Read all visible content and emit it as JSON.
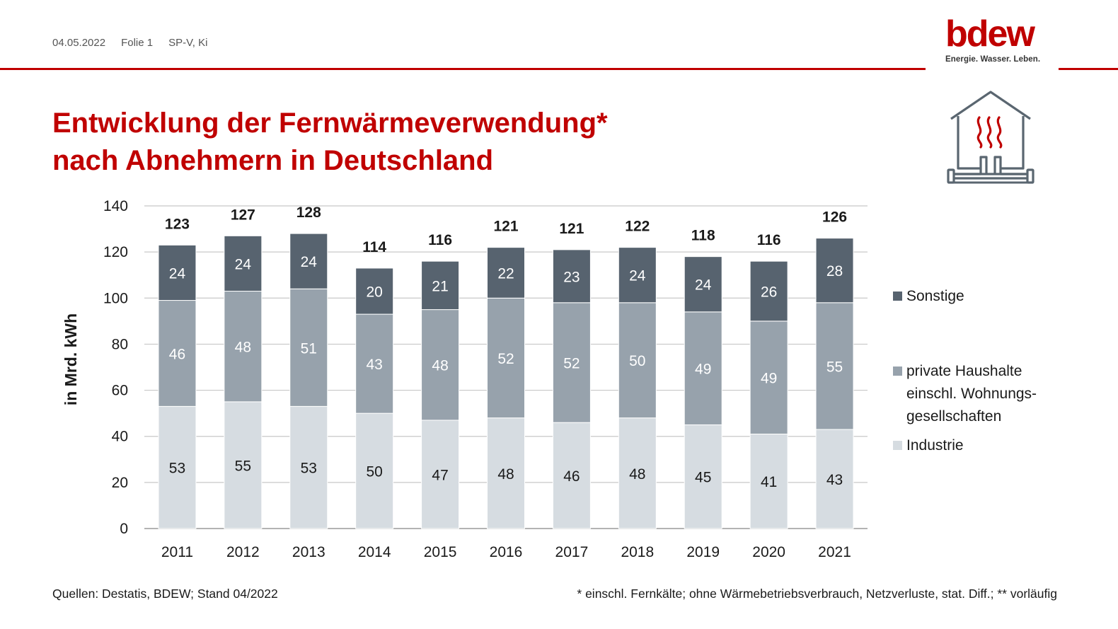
{
  "header": {
    "date": "04.05.2022",
    "slide": "Folie 1",
    "author": "SP-V, Ki"
  },
  "logo": {
    "word": "bdew",
    "tagline": "Energie. Wasser. Leben."
  },
  "title": {
    "line1": "Entwicklung der Fernwärmeverwendung*",
    "line2": "nach Abnehmern in Deutschland"
  },
  "icon": "house-heating-icon",
  "colors": {
    "accent": "#c00000",
    "sonstige": "#57636f",
    "haushalte": "#97a2ac",
    "industrie": "#d6dce1"
  },
  "chart_data": {
    "type": "bar",
    "stacked": true,
    "categories": [
      "2011",
      "2012",
      "2013",
      "2014",
      "2015",
      "2016",
      "2017",
      "2018",
      "2019",
      "2020",
      "2021"
    ],
    "series": [
      {
        "name": "Industrie",
        "values": [
          53,
          55,
          53,
          50,
          47,
          48,
          46,
          48,
          45,
          41,
          43
        ]
      },
      {
        "name": "private Haushalte einschl. Wohnungs-gesellschaften",
        "values": [
          46,
          48,
          51,
          43,
          48,
          52,
          52,
          50,
          49,
          49,
          55
        ]
      },
      {
        "name": "Sonstige",
        "values": [
          24,
          24,
          24,
          20,
          21,
          22,
          23,
          24,
          24,
          26,
          28
        ]
      }
    ],
    "totals": [
      123,
      127,
      128,
      114,
      116,
      121,
      121,
      122,
      118,
      116,
      126
    ],
    "ylabel": "in Mrd. kWh",
    "ylim": [
      0,
      140
    ],
    "yticks": [
      "0",
      "20",
      "40",
      "60",
      "80",
      "100",
      "120",
      "140"
    ],
    "grid": true,
    "legend_position": "right"
  },
  "legend": {
    "sonstige": "Sonstige",
    "haushalte_l1": "private Haushalte",
    "haushalte_l2": "einschl. Wohnungs-",
    "haushalte_l3": "gesellschaften",
    "industrie": "Industrie"
  },
  "footer": {
    "sources": "Quellen: Destatis, BDEW; Stand 04/2022",
    "note": "* einschl. Fernkälte; ohne Wärmebetriebsverbrauch, Netzverluste, stat. Diff.; ** vorläufig"
  }
}
